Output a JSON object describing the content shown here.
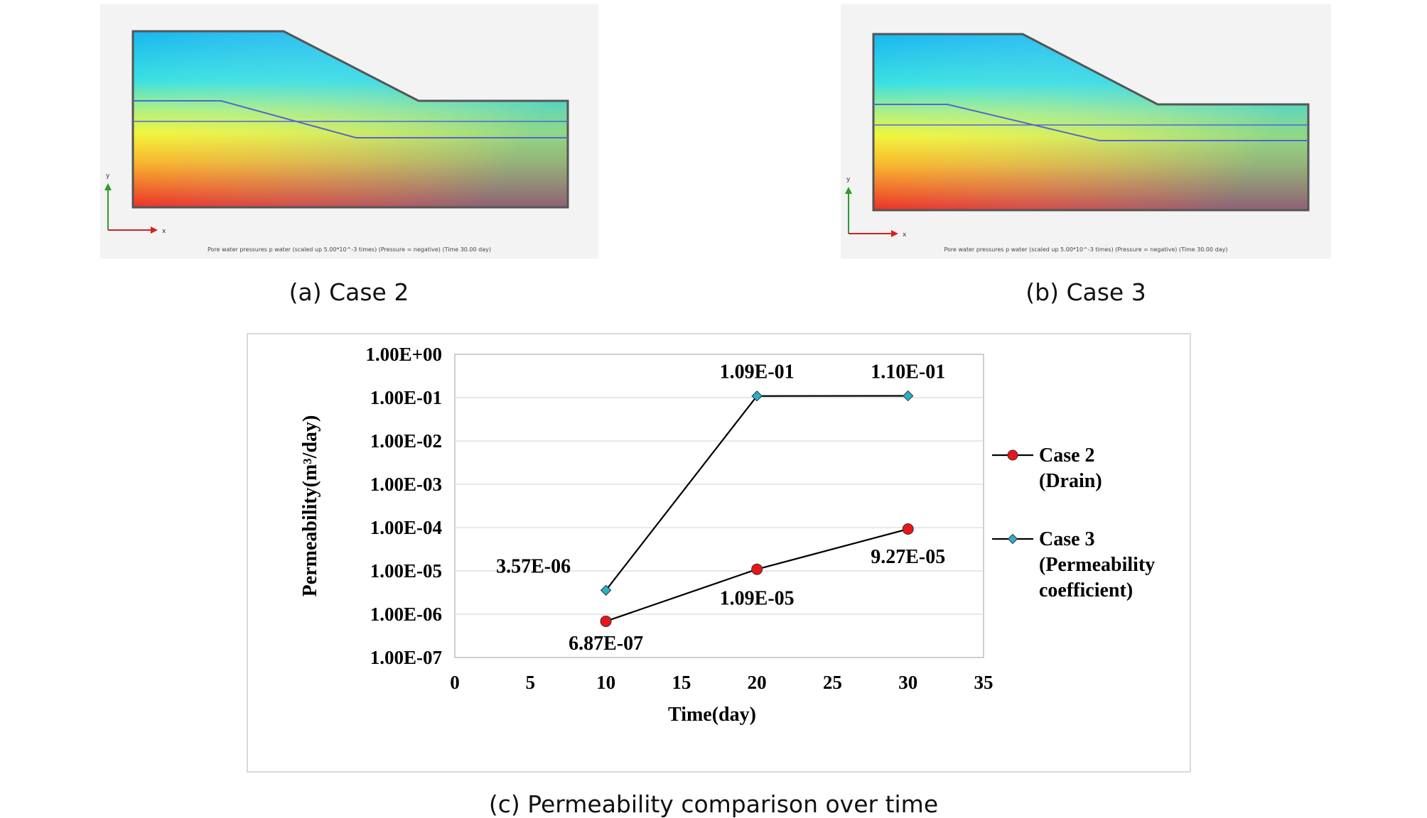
{
  "captions": {
    "a": "(a) Case 2",
    "b": "(b) Case 3",
    "c": "(c) Permeability comparison over time"
  },
  "sim_panels": {
    "a": {
      "footnote": "Pore water pressures p water (scaled up 5.00*10^-3 times) (Pressure = negative) (Time 30.00 day)",
      "axis_x": "x",
      "axis_y": "y"
    },
    "b": {
      "footnote": "Pore water pressures p water (scaled up 5.00*10^-3 times) (Pressure = negative) (Time 30.00 day)",
      "axis_x": "x",
      "axis_y": "y"
    }
  },
  "chart_data": {
    "type": "line",
    "xlabel": "Time(day)",
    "ylabel": "Permeability(m³/day)",
    "xlim": [
      0,
      35
    ],
    "x_ticks": [
      "0",
      "5",
      "10",
      "15",
      "20",
      "25",
      "30",
      "35"
    ],
    "y_scale": "log",
    "ylim": [
      1e-07,
      1
    ],
    "y_ticks": [
      "1.00E+00",
      "1.00E-01",
      "1.00E-02",
      "1.00E-03",
      "1.00E-04",
      "1.00E-05",
      "1.00E-06",
      "1.00E-07"
    ],
    "grid": "horizontal",
    "legend_position": "right",
    "series": [
      {
        "name": "Case 2 (Drain)",
        "legend_lines": [
          "Case 2",
          "(Drain)"
        ],
        "marker": "circle",
        "color": "#e8161b",
        "x": [
          10,
          20,
          30
        ],
        "y": [
          6.87e-07,
          1.09e-05,
          9.27e-05
        ],
        "labels": [
          "6.87E-07",
          "1.09E-05",
          "9.27E-05"
        ]
      },
      {
        "name": "Case 3 (Permeability coefficient)",
        "legend_lines": [
          "Case 3",
          "(Permeability",
          "coefficient)"
        ],
        "marker": "diamond",
        "color": "#2ab1c9",
        "x": [
          10,
          20,
          30
        ],
        "y": [
          3.57e-06,
          0.109,
          0.11
        ],
        "labels": [
          "3.57E-06",
          "1.09E-01",
          "1.10E-01"
        ]
      }
    ]
  }
}
